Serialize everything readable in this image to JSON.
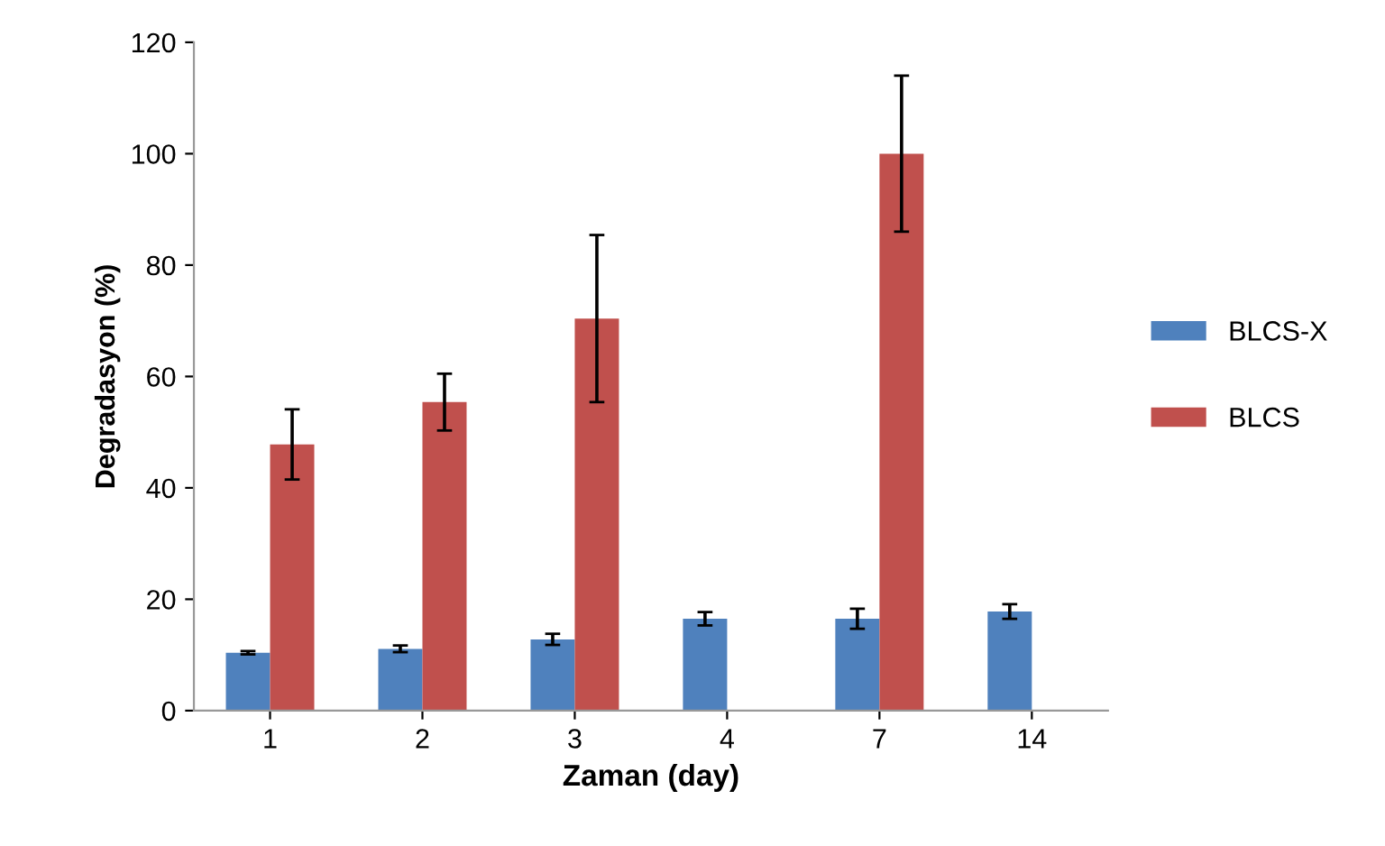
{
  "chart_data": {
    "type": "bar",
    "xlabel": "Zaman (day)",
    "ylabel": "Degradasyon (%)",
    "categories": [
      "1",
      "2",
      "3",
      "4",
      "7",
      "14"
    ],
    "series": [
      {
        "name": "BLCS-X",
        "color": "#4f81bd",
        "values": [
          10.4,
          11.1,
          12.8,
          16.5,
          16.5,
          17.8
        ],
        "errors": [
          0.3,
          0.6,
          1.0,
          1.2,
          1.8,
          1.3
        ]
      },
      {
        "name": "BLCS",
        "color": "#c0504d",
        "values": [
          47.8,
          55.4,
          70.4,
          null,
          100,
          null
        ],
        "errors": [
          6.3,
          5.1,
          15,
          null,
          14,
          null
        ]
      }
    ],
    "ylim": [
      0,
      120
    ],
    "yticks": [
      0,
      20,
      40,
      60,
      80,
      100,
      120
    ],
    "grid": false,
    "legend": "right"
  }
}
